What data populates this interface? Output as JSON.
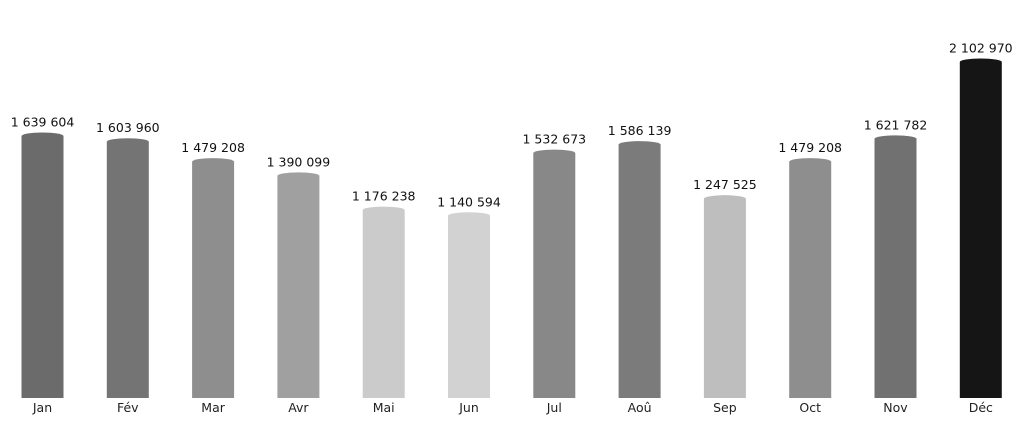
{
  "chart_data": {
    "type": "bar",
    "categories": [
      "Jan",
      "Fév",
      "Mar",
      "Avr",
      "Mai",
      "Jun",
      "Jul",
      "Aoû",
      "Sep",
      "Oct",
      "Nov",
      "Déc"
    ],
    "values": [
      1639604,
      1603960,
      1479208,
      1390099,
      1176238,
      1140594,
      1532673,
      1586139,
      1247525,
      1479208,
      1621782,
      2102970
    ],
    "value_labels": [
      "1 639 604",
      "1 603 960",
      "1 479 208",
      "1 390 099",
      "1 176 238",
      "1 140 594",
      "1 532 673",
      "1 586 139",
      "1 247 525",
      "1 479 208",
      "1 621 782",
      "2 102 970"
    ],
    "colors": [
      "#6b6b6b",
      "#747474",
      "#8e8e8e",
      "#a0a0a0",
      "#cbcbcb",
      "#d2d2d2",
      "#888888",
      "#7b7b7b",
      "#bebebe",
      "#8e8e8e",
      "#717171",
      "#151515"
    ],
    "ylim": [
      0,
      2102970
    ],
    "grid": false,
    "legend": "none",
    "title": "",
    "xlabel": "",
    "ylabel": ""
  }
}
